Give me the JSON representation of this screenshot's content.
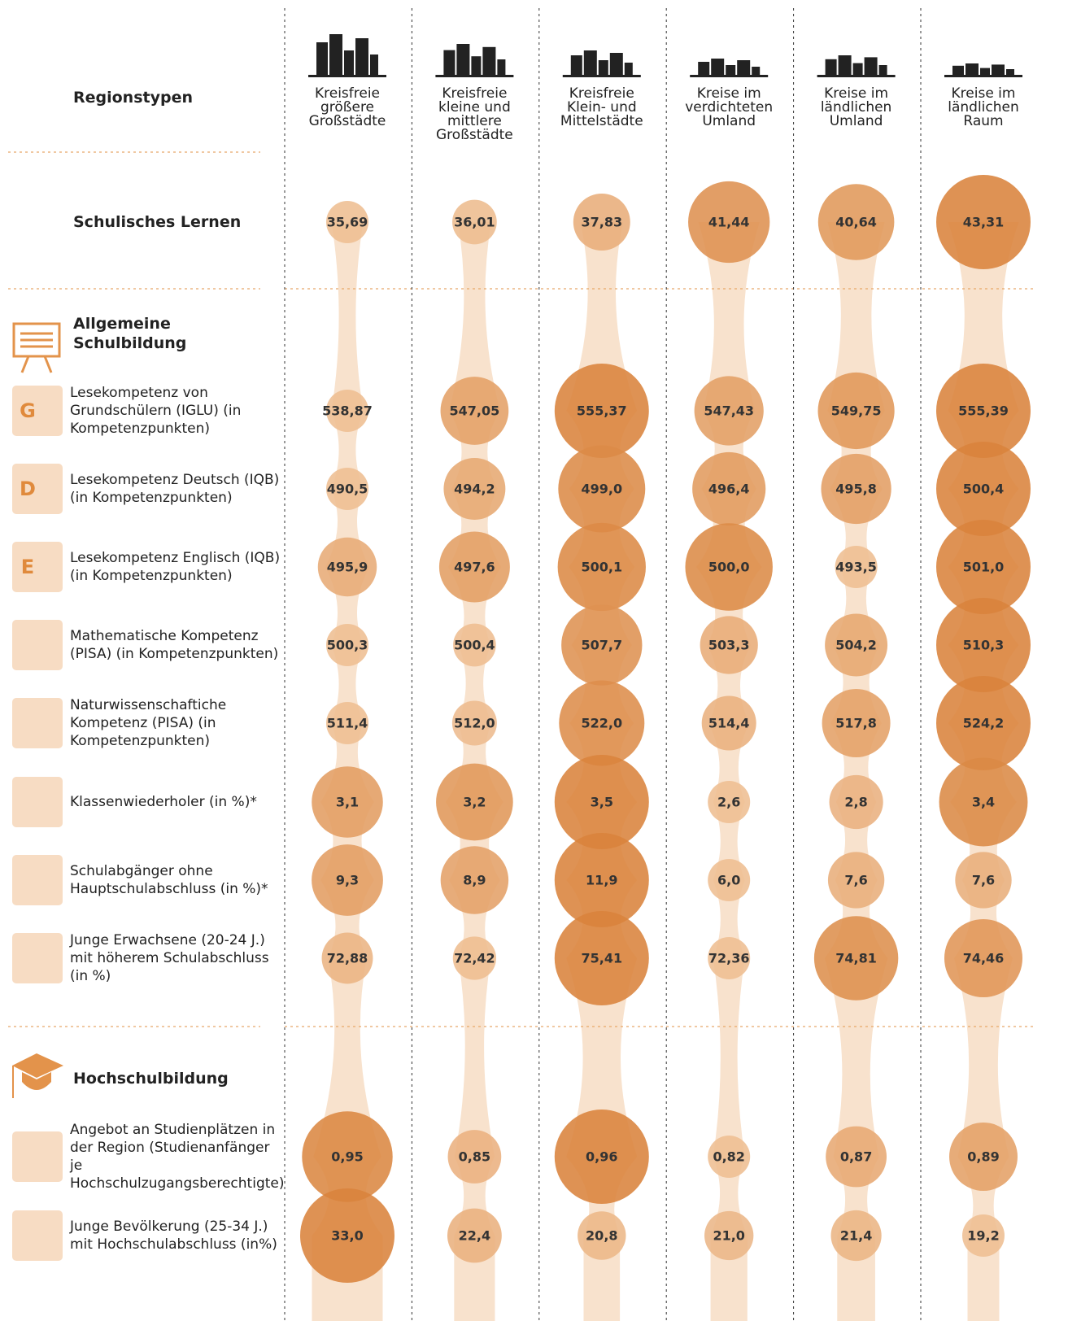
{
  "chart_data": {
    "type": "bubble-grid",
    "row_header": "Regionstypen",
    "categories": [
      "Kreisfreie größere Großstädte",
      "Kreisfreie kleine und mittlere Großstädte",
      "Kreisfreie Klein- und Mittelstädte",
      "Kreise im verdichteten Umland",
      "Kreise im ländlichen Umland",
      "Kreise im ländlichen Raum"
    ],
    "rows": [
      {
        "label": "Schulisches Lernen",
        "values": [
          35.69,
          36.01,
          37.83,
          41.44,
          40.64,
          43.31
        ],
        "value_labels": [
          "35,69",
          "36,01",
          "37,83",
          "41,44",
          "40,64",
          "43,31"
        ]
      },
      {
        "label": "Allgemeine Schulbildung"
      },
      {
        "icon": "G",
        "label": "Lesekompetenz von Grundschülern (IGLU) (in Kompetenzpunkten)",
        "values": [
          538.87,
          547.05,
          555.37,
          547.43,
          549.75,
          555.39
        ],
        "value_labels": [
          "538,87",
          "547,05",
          "555,37",
          "547,43",
          "549,75",
          "555,39"
        ]
      },
      {
        "icon": "D",
        "label": "Lesekompetenz Deutsch (IQB) (in Kompetenzpunkten)",
        "values": [
          490.5,
          494.2,
          499.0,
          496.4,
          495.8,
          500.4
        ],
        "value_labels": [
          "490,5",
          "494,2",
          "499,0",
          "496,4",
          "495,8",
          "500,4"
        ]
      },
      {
        "icon": "E",
        "label": "Lesekompetenz Englisch (IQB) (in Kompetenzpunkten)",
        "values": [
          495.9,
          497.6,
          500.1,
          500.0,
          493.5,
          501.0
        ],
        "value_labels": [
          "495,9",
          "497,6",
          "500,1",
          "500,0",
          "493,5",
          "501,0"
        ]
      },
      {
        "label": "Mathematische Kompetenz (PISA) (in Kompetenzpunkten)",
        "values": [
          500.3,
          500.4,
          507.7,
          503.3,
          504.2,
          510.3
        ],
        "value_labels": [
          "500,3",
          "500,4",
          "507,7",
          "503,3",
          "504,2",
          "510,3"
        ]
      },
      {
        "label": "Naturwissenschaftiche Kompetenz (PISA) (in Kompetenzpunkten)",
        "values": [
          511.4,
          512.0,
          522.0,
          514.4,
          517.8,
          524.2
        ],
        "value_labels": [
          "511,4",
          "512,0",
          "522,0",
          "514,4",
          "517,8",
          "524,2"
        ]
      },
      {
        "label": "Klassenwiederholer (in %)*",
        "values": [
          3.1,
          3.2,
          3.5,
          2.6,
          2.8,
          3.4
        ],
        "value_labels": [
          "3,1",
          "3,2",
          "3,5",
          "2,6",
          "2,8",
          "3,4"
        ]
      },
      {
        "label": "Schulabgänger ohne Hauptschulabschluss (in %)*",
        "values": [
          9.3,
          8.9,
          11.9,
          6.0,
          7.6,
          7.6
        ],
        "value_labels": [
          "9,3",
          "8,9",
          "11,9",
          "6,0",
          "7,6",
          "7,6"
        ]
      },
      {
        "label": "Junge Erwachsene (20-24 J.) mit höherem Schulabschluss (in %)",
        "values": [
          72.88,
          72.42,
          75.41,
          72.36,
          74.81,
          74.46
        ],
        "value_labels": [
          "72,88",
          "72,42",
          "75,41",
          "72,36",
          "74,81",
          "74,46"
        ]
      },
      {
        "label": "Hochschulbildung"
      },
      {
        "label": "Angebot an Studienplätzen in der Region (Studienanfänger je Hochschulzugangsberechtigte)",
        "values": [
          0.95,
          0.85,
          0.96,
          0.82,
          0.87,
          0.89
        ],
        "value_labels": [
          "0,95",
          "0,85",
          "0,96",
          "0,82",
          "0,87",
          "0,89"
        ]
      },
      {
        "label": "Junge Bevölkerung (25-34 J.) mit Hochschulabschluss (in%)",
        "values": [
          33.0,
          22.4,
          20.8,
          21.0,
          21.4,
          19.2
        ],
        "value_labels": [
          "33,0",
          "22,4",
          "20,8",
          "21,0",
          "21,4",
          "19,2"
        ]
      }
    ]
  }
}
